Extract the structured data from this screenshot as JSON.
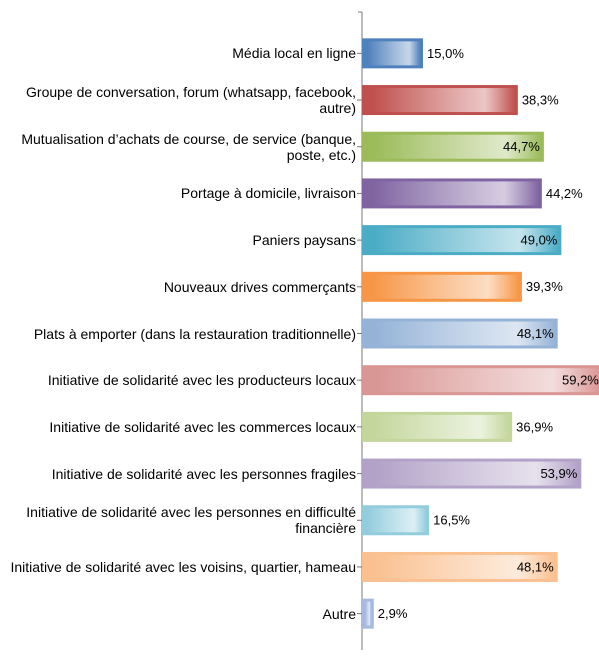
{
  "chart_data": {
    "type": "hbar",
    "categories": [
      "Média local en ligne",
      "Groupe de conversation, forum (whatsapp, facebook, autre)",
      "Mutualisation d’achats de course, de service (banque, poste, etc.)",
      "Portage à domicile, livraison",
      "Paniers paysans",
      "Nouveaux drives commerçants",
      "Plats à emporter (dans la restauration traditionnelle)",
      "Initiative de solidarité avec les producteurs locaux",
      "Initiative de solidarité avec les commerces locaux",
      "Initiative de solidarité avec les personnes fragiles",
      "Initiative de solidarité avec les personnes en difficulté financière",
      "Initiative de solidarité avec les voisins, quartier, hameau",
      "Autre"
    ],
    "values": [
      15.0,
      38.3,
      44.7,
      44.2,
      49.0,
      39.3,
      48.1,
      59.2,
      36.9,
      53.9,
      16.5,
      48.1,
      2.9
    ],
    "value_labels": [
      "15,0%",
      "38,3%",
      "44,7%",
      "44,2%",
      "49,0%",
      "39,3%",
      "48,1%",
      "59,2%",
      "36,9%",
      "53,9%",
      "16,5%",
      "48,1%",
      "2,9%"
    ],
    "colors": [
      "#4f81bd",
      "#c0504d",
      "#9bbb59",
      "#8064a2",
      "#4bacc6",
      "#f79646",
      "#95b3d7",
      "#d99694",
      "#c3d69b",
      "#b2a2c7",
      "#93cddd",
      "#fac090",
      "#a6b9e0"
    ],
    "xlim": [
      0,
      58
    ]
  }
}
